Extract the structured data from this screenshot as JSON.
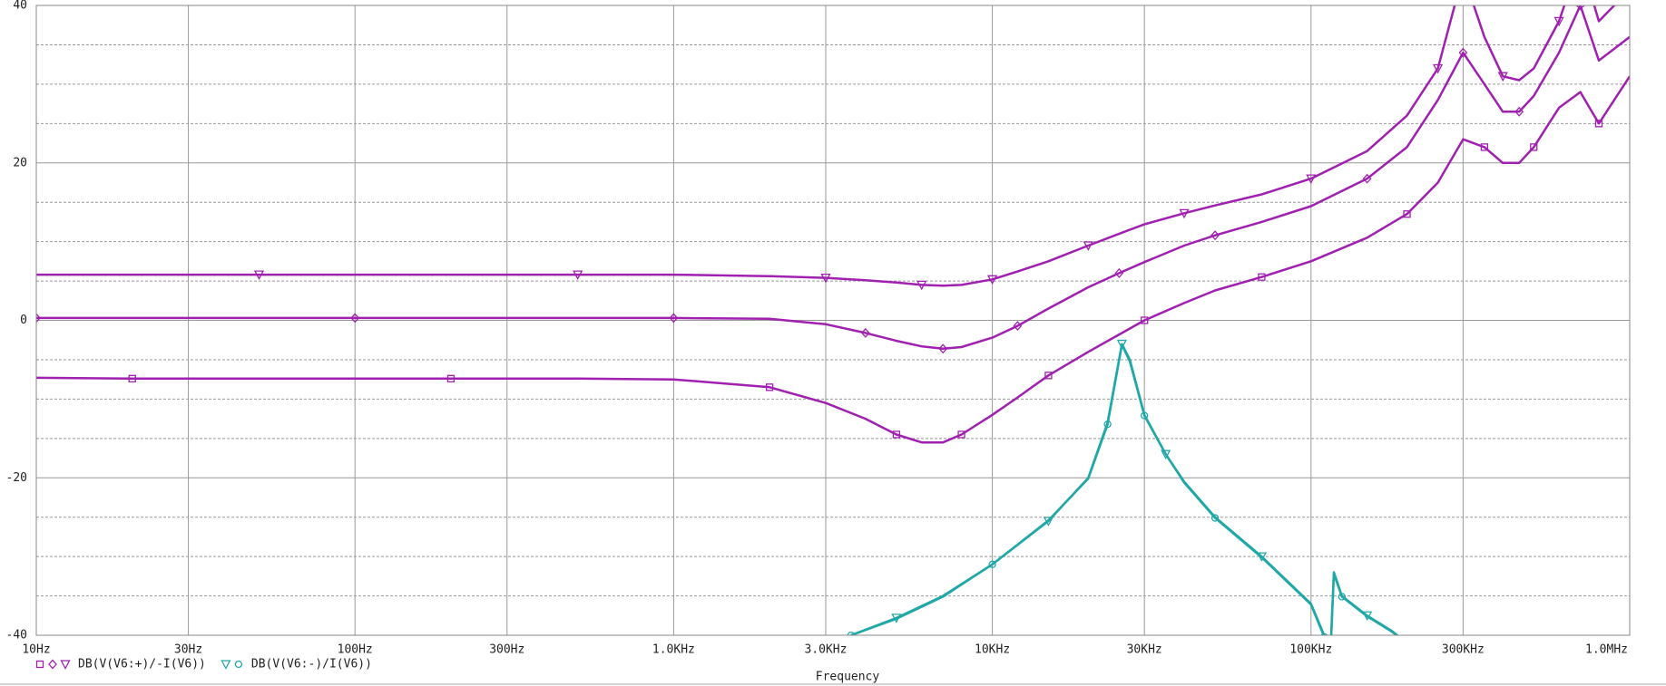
{
  "chart_data": {
    "type": "line",
    "xscale": "log",
    "xlabel": "Frequency",
    "xlim": [
      10,
      1000000
    ],
    "ylim": [
      -40,
      40
    ],
    "xticks": [
      {
        "value": 10,
        "label": "10Hz"
      },
      {
        "value": 30,
        "label": "30Hz"
      },
      {
        "value": 100,
        "label": "100Hz"
      },
      {
        "value": 300,
        "label": "300Hz"
      },
      {
        "value": 1000,
        "label": "1.0KHz"
      },
      {
        "value": 3000,
        "label": "3.0KHz"
      },
      {
        "value": 10000,
        "label": "10KHz"
      },
      {
        "value": 30000,
        "label": "30KHz"
      },
      {
        "value": 100000,
        "label": "100KHz"
      },
      {
        "value": 300000,
        "label": "300KHz"
      },
      {
        "value": 1000000,
        "label": "1.0MHz"
      }
    ],
    "yticks": [
      -40,
      -20,
      0,
      20,
      40
    ],
    "grid": true,
    "series": [
      {
        "name": "DB(V(V6:+)/-I(V6))",
        "color": "#a020b0",
        "traces": [
          {
            "marker": "square",
            "x": [
              10,
              20,
              50,
              100,
              200,
              500,
              1000,
              2000,
              3000,
              4000,
              5000,
              6000,
              7000,
              8000,
              10000,
              12000,
              15000,
              20000,
              25000,
              30000,
              40000,
              50000,
              70000,
              100000,
              150000,
              200000,
              250000,
              300000,
              350000,
              400000,
              450000,
              500000,
              600000,
              700000,
              800000,
              1000000
            ],
            "values": [
              -7.3,
              -7.4,
              -7.4,
              -7.4,
              -7.4,
              -7.4,
              -7.5,
              -8.5,
              -10.5,
              -12.5,
              -14.5,
              -15.5,
              -15.5,
              -14.5,
              -12,
              -9.8,
              -7,
              -4,
              -1.8,
              0,
              2.2,
              3.8,
              5.5,
              7.5,
              10.5,
              13.5,
              17.5,
              23,
              22,
              20,
              20,
              22,
              27,
              29,
              25,
              31
            ]
          },
          {
            "marker": "diamond",
            "x": [
              10,
              20,
              50,
              100,
              200,
              500,
              1000,
              2000,
              3000,
              4000,
              5000,
              6000,
              7000,
              8000,
              10000,
              12000,
              15000,
              20000,
              25000,
              30000,
              40000,
              50000,
              70000,
              100000,
              150000,
              200000,
              250000,
              300000,
              350000,
              400000,
              450000,
              500000,
              600000,
              700000,
              800000,
              1000000
            ],
            "values": [
              0.3,
              0.3,
              0.3,
              0.3,
              0.3,
              0.3,
              0.3,
              0.2,
              -0.5,
              -1.6,
              -2.6,
              -3.3,
              -3.6,
              -3.4,
              -2.2,
              -0.7,
              1.5,
              4.2,
              6,
              7.4,
              9.5,
              10.8,
              12.5,
              14.5,
              18,
              22,
              28,
              34,
              30,
              26.5,
              26.5,
              28.5,
              34,
              40,
              33,
              36
            ]
          },
          {
            "marker": "triangle",
            "x": [
              10,
              20,
              50,
              100,
              200,
              500,
              1000,
              2000,
              3000,
              4000,
              5000,
              6000,
              7000,
              8000,
              10000,
              12000,
              15000,
              20000,
              25000,
              30000,
              40000,
              50000,
              70000,
              100000,
              150000,
              200000,
              250000,
              300000,
              350000,
              400000,
              450000,
              500000,
              600000,
              700000,
              800000,
              1000000
            ],
            "values": [
              5.8,
              5.8,
              5.8,
              5.8,
              5.8,
              5.8,
              5.8,
              5.6,
              5.4,
              5.1,
              4.8,
              4.5,
              4.4,
              4.5,
              5.2,
              6.2,
              7.5,
              9.5,
              11,
              12.2,
              13.6,
              14.6,
              16,
              18,
              21.5,
              26,
              32,
              44,
              36,
              31,
              30.5,
              32,
              38,
              46,
              38,
              42
            ]
          }
        ]
      },
      {
        "name": "DB(V(V6:-)/I(V6))",
        "color": "#20a8a8",
        "traces": [
          {
            "marker": "triangle",
            "x": [
              3600,
              5000,
              7000,
              10000,
              15000,
              20000,
              23000,
              25500,
              27000,
              30000,
              35000,
              40000,
              50000,
              70000,
              100000,
              110000,
              114000,
              118000,
              125000,
              150000,
              180000,
              200000
            ],
            "values": [
              -40,
              -37.8,
              -35,
              -31,
              -25.5,
              -20,
              -13,
              -3,
              -5,
              -12,
              -17,
              -20.5,
              -25,
              -30,
              -36,
              -40,
              -46,
              -32,
              -35,
              -37.5,
              -39.5,
              -41
            ]
          },
          {
            "marker": "circle",
            "x": [
              3600,
              5000,
              7000,
              10000,
              15000,
              20000,
              23000,
              25500,
              27000,
              30000,
              35000,
              40000,
              50000,
              70000,
              100000,
              110000,
              114000,
              118000,
              125000,
              150000,
              180000,
              200000
            ],
            "values": [
              -40,
              -37.9,
              -35.1,
              -31,
              -25.4,
              -20.1,
              -13.2,
              -3.1,
              -5.2,
              -12.1,
              -17,
              -20.6,
              -25.1,
              -30.1,
              -36.1,
              -40.2,
              -46,
              -32.2,
              -35.1,
              -37.6,
              -39.6,
              -41
            ]
          }
        ]
      }
    ]
  }
}
